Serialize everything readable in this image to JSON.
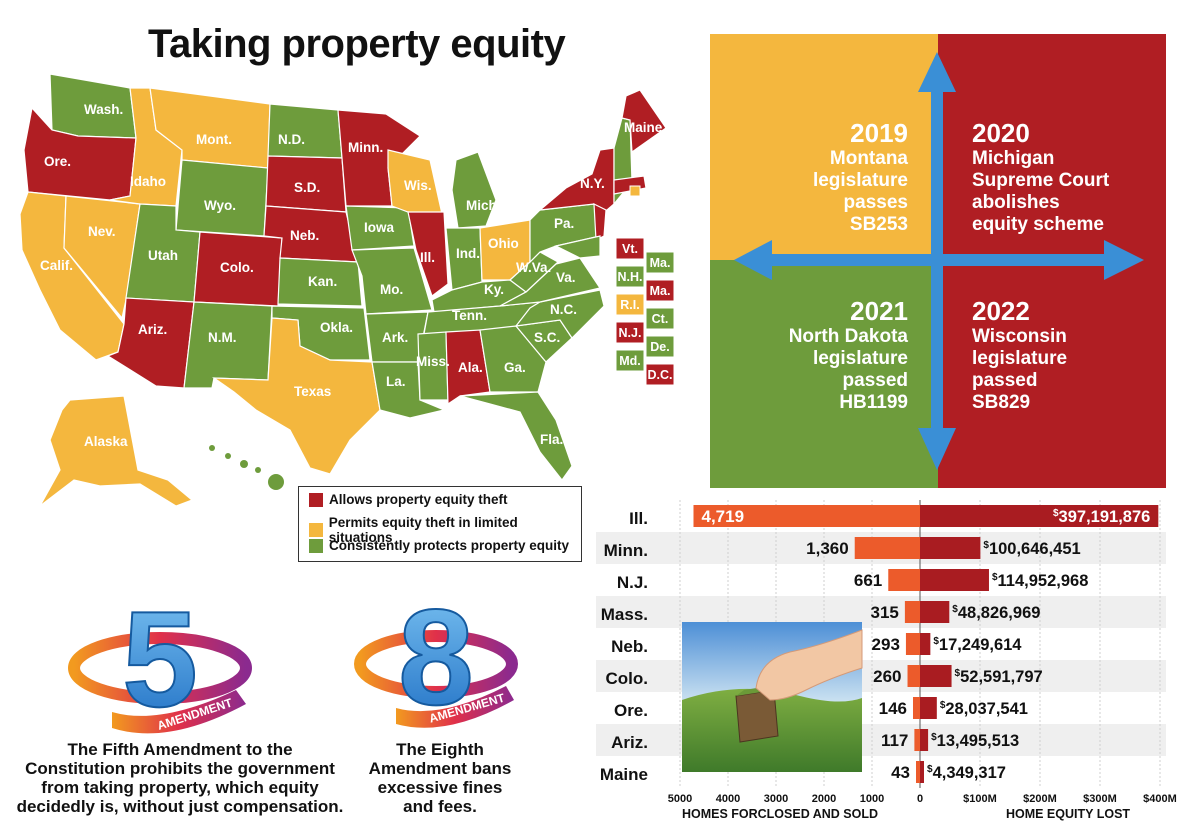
{
  "title": "Taking property equity",
  "colors": {
    "allows": "#b01e23",
    "limited": "#f4b73e",
    "protects": "#6e9c3c",
    "bar_left": "#ec5b2b",
    "bar_right": "#a91c21",
    "arrow": "#3a8fd6"
  },
  "map": {
    "labels": [
      "Wash.",
      "Ore.",
      "Idaho",
      "Mont.",
      "N.D.",
      "Minn.",
      "Maine",
      "Wyo.",
      "S.D.",
      "Wis.",
      "N.Y.",
      "Mich.",
      "Nev.",
      "Utah",
      "Neb.",
      "Iowa",
      "Ill.",
      "Ind.",
      "Ohio",
      "Pa.",
      "Calif.",
      "Colo.",
      "Kan.",
      "Mo.",
      "Ky.",
      "W.Va.",
      "Va.",
      "N.C.",
      "Tenn.",
      "Ariz.",
      "N.M.",
      "Okla.",
      "Ark.",
      "S.C.",
      "Texas",
      "Miss.",
      "Ala.",
      "Ga.",
      "La.",
      "Fla.",
      "Alaska",
      "Hi."
    ],
    "northeast": [
      {
        "label": "Vt.",
        "status": "allows"
      },
      {
        "label": "Ma.",
        "status": "protects"
      },
      {
        "label": "N.H.",
        "status": "protects"
      },
      {
        "label": "Ma.",
        "status": "allows"
      },
      {
        "label": "R.I.",
        "status": "limited"
      },
      {
        "label": "Ct.",
        "status": "protects"
      },
      {
        "label": "N.J.",
        "status": "allows"
      },
      {
        "label": "De.",
        "status": "protects"
      },
      {
        "label": "Md.",
        "status": "protects"
      },
      {
        "label": "D.C.",
        "status": "allows"
      }
    ]
  },
  "legend": [
    {
      "label": "Allows property equity theft",
      "status": "allows"
    },
    {
      "label": "Permits equity theft in limited situations",
      "status": "limited"
    },
    {
      "label": "Consistently protects property equity",
      "status": "protects"
    }
  ],
  "timeline": [
    {
      "year": "2019",
      "lines": [
        "Montana",
        "legislature",
        "passes",
        "SB253"
      ]
    },
    {
      "year": "2020",
      "lines": [
        "Michigan",
        "Supreme Court",
        "abolishes",
        "equity scheme"
      ]
    },
    {
      "year": "2021",
      "lines": [
        "North Dakota",
        "legislature",
        "passed",
        "HB1199"
      ]
    },
    {
      "year": "2022",
      "lines": [
        "Wisconsin",
        "legislature",
        "passed",
        "SB829"
      ]
    }
  ],
  "amendments": [
    {
      "number": "5",
      "banner": "AMENDMENT",
      "caption": [
        "The Fifth Amendment to the",
        "Constitution prohibits the government",
        "from taking property, which equity",
        "decidedly is, without just compensation."
      ]
    },
    {
      "number": "8",
      "banner": "AMENDMENT",
      "caption": [
        "The Eighth",
        "Amendment bans",
        "excessive fines",
        "and fees."
      ]
    }
  ],
  "chart_data": {
    "type": "bar",
    "categories": [
      "Ill.",
      "Minn.",
      "N.J.",
      "Mass.",
      "Neb.",
      "Colo.",
      "Ore.",
      "Ariz.",
      "Maine"
    ],
    "series": [
      {
        "name": "HOMES FORCLOSED AND SOLD",
        "values": [
          4719,
          1360,
          661,
          315,
          293,
          260,
          146,
          117,
          43
        ],
        "labels": [
          "4,719",
          "1,360",
          "661",
          "315",
          "293",
          "260",
          "146",
          "117",
          "43"
        ]
      },
      {
        "name": "HOME EQUITY LOST",
        "values": [
          397191876,
          100646451,
          114952968,
          48826969,
          17249614,
          52591797,
          28037541,
          13495513,
          4349317
        ],
        "labels": [
          "397,191,876",
          "100,646,451",
          "114,952,968",
          "48,826,969",
          "17,249,614",
          "52,591,797",
          "28,037,541",
          "13,495,513",
          "4,349,317"
        ]
      }
    ],
    "left_axis": {
      "ticks": [
        "5000",
        "4000",
        "3000",
        "2000",
        "1000",
        "0"
      ],
      "range": [
        0,
        5000
      ],
      "label": "HOMES FORCLOSED AND SOLD"
    },
    "right_axis": {
      "ticks": [
        "$100M",
        "$200M",
        "$300M",
        "$400M"
      ],
      "range": [
        0,
        400000000
      ],
      "label": "HOME EQUITY LOST"
    },
    "currency_symbol": "$",
    "grid": true
  }
}
